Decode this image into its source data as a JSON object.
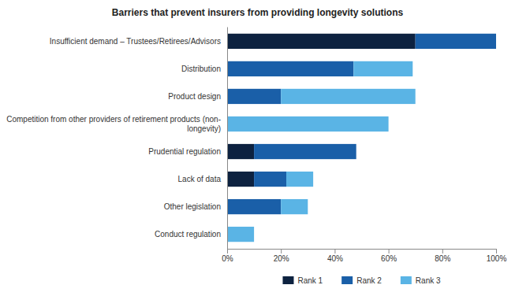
{
  "chart_data": {
    "type": "bar",
    "orientation": "horizontal",
    "stacked": true,
    "title": "Barriers that prevent insurers from providing longevity solutions",
    "categories": [
      "Insufficient demand – Trustees/Retirees/Advisors",
      "Distribution",
      "Product design",
      "Competition from other providers of retirement products (non-\nlongevity)",
      "Prudential regulation",
      "Lack of data",
      "Other legislation",
      "Conduct regulation"
    ],
    "series": [
      {
        "name": "Rank 1",
        "color": "#0d2240",
        "values": [
          70,
          0,
          0,
          0,
          10,
          10,
          0,
          0
        ]
      },
      {
        "name": "Rank 2",
        "color": "#1a5fa8",
        "values": [
          30,
          47,
          20,
          0,
          38,
          12,
          20,
          0
        ]
      },
      {
        "name": "Rank 3",
        "color": "#5ab4e5",
        "values": [
          0,
          22,
          50,
          60,
          0,
          10,
          10,
          10
        ]
      }
    ],
    "xlim": [
      0,
      100
    ],
    "xticks": [
      {
        "value": 0,
        "label": "0%"
      },
      {
        "value": 20,
        "label": "20%"
      },
      {
        "value": 40,
        "label": "40%"
      },
      {
        "value": 60,
        "label": "60%"
      },
      {
        "value": 80,
        "label": "80%"
      },
      {
        "value": 100,
        "label": "100%"
      }
    ],
    "grid": false,
    "legend": "bottom"
  }
}
